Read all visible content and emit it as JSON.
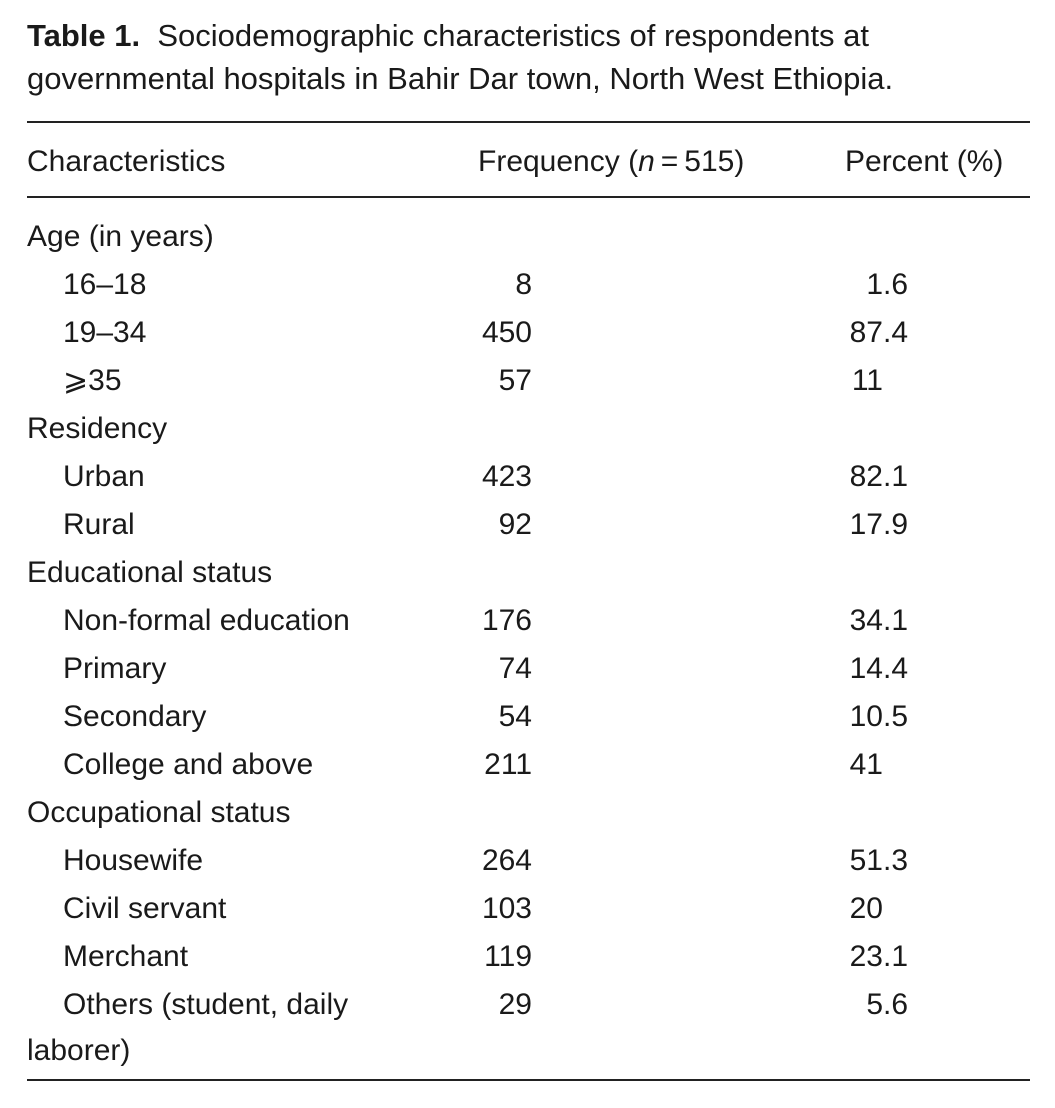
{
  "caption": {
    "label": "Table 1.",
    "text": "Sociodemographic characteristics of respondents at governmental hospitals in Bahir Dar town, North West Ethiopia."
  },
  "headers": {
    "characteristics": "Characteristics",
    "frequency_prefix": "Frequency (",
    "frequency_n": "n",
    "frequency_suffix": " = 515)",
    "percent": "Percent (%)"
  },
  "rows": [
    {
      "label": "Age (in years)",
      "group": true
    },
    {
      "label": "16–18",
      "freq": "8",
      "pct_int": "1",
      "pct_dec": ".6"
    },
    {
      "label": "19–34",
      "freq": "450",
      "pct_int": "87",
      "pct_dec": ".4"
    },
    {
      "label": "⩾35",
      "freq": "57",
      "pct_int": "11",
      "pct_dec": ""
    },
    {
      "label": "Residency",
      "group": true
    },
    {
      "label": "Urban",
      "freq": "423",
      "pct_int": "82",
      "pct_dec": ".1"
    },
    {
      "label": "Rural",
      "freq": "92",
      "pct_int": "17",
      "pct_dec": ".9"
    },
    {
      "label": "Educational status",
      "group": true
    },
    {
      "label": "Non-formal education",
      "freq": "176",
      "pct_int": "34",
      "pct_dec": ".1"
    },
    {
      "label": "Primary",
      "freq": "74",
      "pct_int": "14",
      "pct_dec": ".4"
    },
    {
      "label": "Secondary",
      "freq": "54",
      "pct_int": "10",
      "pct_dec": ".5"
    },
    {
      "label": "College and above",
      "freq": "211",
      "pct_int": "41",
      "pct_dec": ""
    },
    {
      "label": "Occupational status",
      "group": true
    },
    {
      "label": "Housewife",
      "freq": "264",
      "pct_int": "51",
      "pct_dec": ".3"
    },
    {
      "label": "Civil servant",
      "freq": "103",
      "pct_int": "20",
      "pct_dec": ""
    },
    {
      "label": "Merchant",
      "freq": "119",
      "pct_int": "23",
      "pct_dec": ".1"
    },
    {
      "label": "Others (student, daily",
      "label_cont": "laborer)",
      "freq": "29",
      "pct_int": "5",
      "pct_dec": ".6"
    }
  ]
}
